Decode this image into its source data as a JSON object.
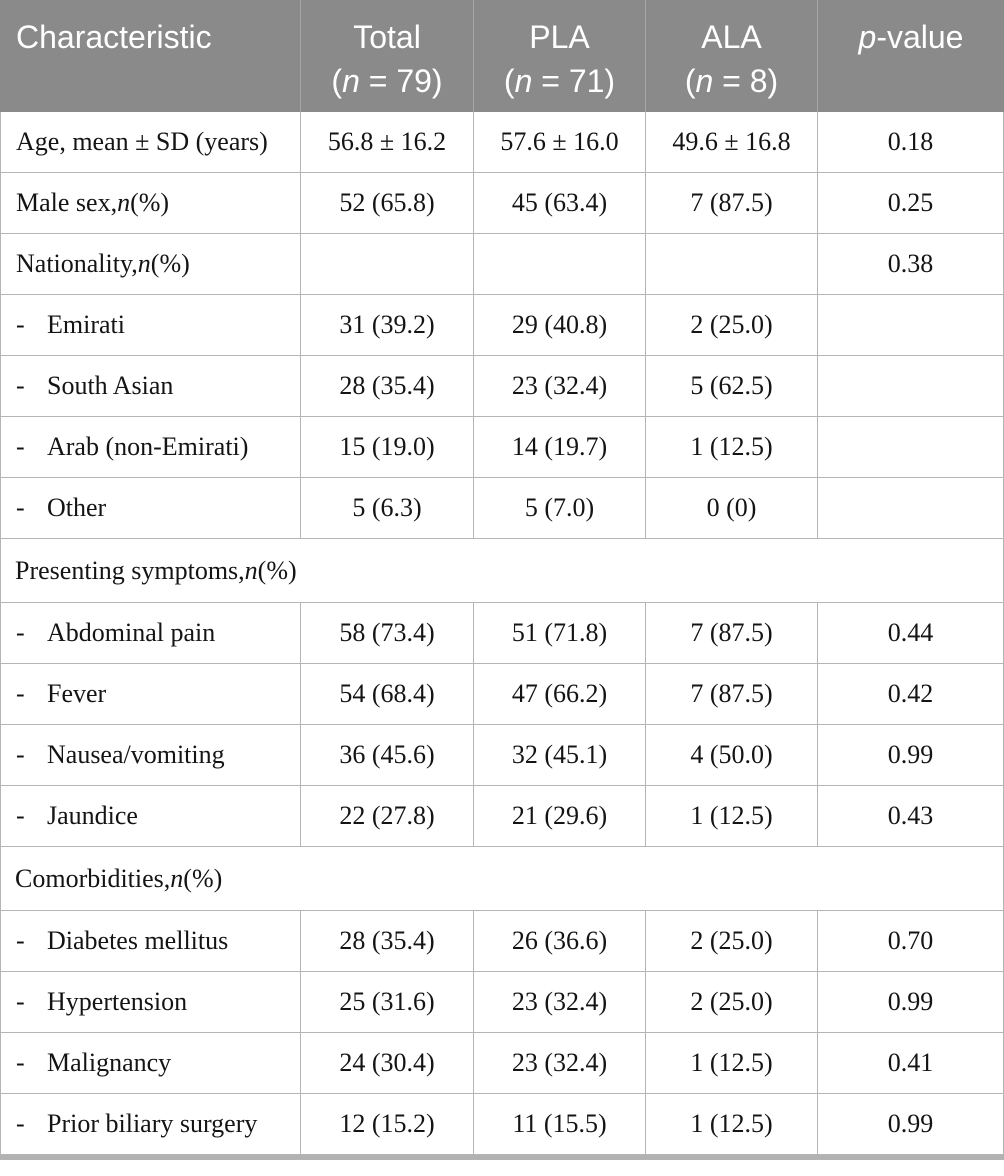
{
  "colors": {
    "header_bg": "#8a8a8a",
    "header_text": "#ffffff",
    "header_divider": "#a6a6a6",
    "row_border": "#b5b5b5",
    "body_text": "#141414",
    "bottom_bar": "#b2b2b2"
  },
  "table": {
    "indent_marker": "-",
    "header": {
      "columns": [
        {
          "lines": [
            [
              {
                "t": "Characteristic",
                "i": false
              }
            ]
          ]
        },
        {
          "lines": [
            [
              {
                "t": "Total",
                "i": false
              }
            ],
            [
              {
                "t": "(",
                "i": false
              },
              {
                "t": "n",
                "i": true
              },
              {
                "t": " = 79)",
                "i": false
              }
            ]
          ]
        },
        {
          "lines": [
            [
              {
                "t": "PLA",
                "i": false
              }
            ],
            [
              {
                "t": "(",
                "i": false
              },
              {
                "t": "n",
                "i": true
              },
              {
                "t": " = 71)",
                "i": false
              }
            ]
          ]
        },
        {
          "lines": [
            [
              {
                "t": "ALA",
                "i": false
              }
            ],
            [
              {
                "t": "(",
                "i": false
              },
              {
                "t": "n",
                "i": true
              },
              {
                "t": " = 8)",
                "i": false
              }
            ]
          ]
        },
        {
          "lines": [
            [
              {
                "t": "p",
                "i": true
              },
              {
                "t": "-value",
                "i": false
              }
            ]
          ]
        }
      ]
    },
    "rows": [
      {
        "type": "data",
        "indent": false,
        "label": [
          {
            "t": "Age, mean ± SD (years)",
            "i": false
          }
        ],
        "cells": [
          "56.8 ± 16.2",
          "57.6 ± 16.0",
          "49.6 ± 16.8",
          "0.18"
        ]
      },
      {
        "type": "data",
        "indent": false,
        "label": [
          {
            "t": "Male sex, ",
            "i": false
          },
          {
            "t": "n",
            "i": true
          },
          {
            "t": " (%)",
            "i": false
          }
        ],
        "cells": [
          "52 (65.8)",
          "45 (63.4)",
          "7 (87.5)",
          "0.25"
        ]
      },
      {
        "type": "data",
        "indent": false,
        "label": [
          {
            "t": "Nationality, ",
            "i": false
          },
          {
            "t": "n",
            "i": true
          },
          {
            "t": " (%)",
            "i": false
          }
        ],
        "cells": [
          "",
          "",
          "",
          "0.38"
        ]
      },
      {
        "type": "data",
        "indent": true,
        "label": [
          {
            "t": "Emirati",
            "i": false
          }
        ],
        "cells": [
          "31 (39.2)",
          "29 (40.8)",
          "2 (25.0)",
          ""
        ]
      },
      {
        "type": "data",
        "indent": true,
        "label": [
          {
            "t": "South Asian",
            "i": false
          }
        ],
        "cells": [
          "28 (35.4)",
          "23 (32.4)",
          "5 (62.5)",
          ""
        ]
      },
      {
        "type": "data",
        "indent": true,
        "label": [
          {
            "t": "Arab (non-Emirati)",
            "i": false
          }
        ],
        "cells": [
          "15 (19.0)",
          "14 (19.7)",
          "1 (12.5)",
          ""
        ]
      },
      {
        "type": "data",
        "indent": true,
        "label": [
          {
            "t": "Other",
            "i": false
          }
        ],
        "cells": [
          "5 (6.3)",
          "5 (7.0)",
          "0 (0)",
          ""
        ]
      },
      {
        "type": "section",
        "label": [
          {
            "t": "Presenting symptoms, ",
            "i": false
          },
          {
            "t": "n",
            "i": true
          },
          {
            "t": " (%)",
            "i": false
          }
        ]
      },
      {
        "type": "data",
        "indent": true,
        "label": [
          {
            "t": "Abdominal pain",
            "i": false
          }
        ],
        "cells": [
          "58 (73.4)",
          "51 (71.8)",
          "7 (87.5)",
          "0.44"
        ]
      },
      {
        "type": "data",
        "indent": true,
        "label": [
          {
            "t": "Fever",
            "i": false
          }
        ],
        "cells": [
          "54 (68.4)",
          "47 (66.2)",
          "7 (87.5)",
          "0.42"
        ]
      },
      {
        "type": "data",
        "indent": true,
        "label": [
          {
            "t": "Nausea/vomiting",
            "i": false
          }
        ],
        "cells": [
          "36 (45.6)",
          "32 (45.1)",
          "4 (50.0)",
          "0.99"
        ]
      },
      {
        "type": "data",
        "indent": true,
        "label": [
          {
            "t": "Jaundice",
            "i": false
          }
        ],
        "cells": [
          "22 (27.8)",
          "21 (29.6)",
          "1 (12.5)",
          "0.43"
        ]
      },
      {
        "type": "section",
        "label": [
          {
            "t": "Comorbidities, ",
            "i": false
          },
          {
            "t": "n",
            "i": true
          },
          {
            "t": " (%)",
            "i": false
          }
        ]
      },
      {
        "type": "data",
        "indent": true,
        "label": [
          {
            "t": "Diabetes mellitus",
            "i": false
          }
        ],
        "cells": [
          "28 (35.4)",
          "26 (36.6)",
          "2 (25.0)",
          "0.70"
        ]
      },
      {
        "type": "data",
        "indent": true,
        "label": [
          {
            "t": "Hypertension",
            "i": false
          }
        ],
        "cells": [
          "25 (31.6)",
          "23 (32.4)",
          "2 (25.0)",
          "0.99"
        ]
      },
      {
        "type": "data",
        "indent": true,
        "label": [
          {
            "t": "Malignancy",
            "i": false
          }
        ],
        "cells": [
          "24 (30.4)",
          "23 (32.4)",
          "1 (12.5)",
          "0.41"
        ]
      },
      {
        "type": "data",
        "indent": true,
        "label": [
          {
            "t": "Prior biliary surgery",
            "i": false
          }
        ],
        "cells": [
          "12 (15.2)",
          "11 (15.5)",
          "1 (12.5)",
          "0.99"
        ]
      }
    ]
  },
  "chart_data": {
    "type": "table",
    "title": "Characteristics of patients: Total vs PLA vs ALA",
    "columns": [
      "Characteristic",
      "Total (n = 79)",
      "PLA (n = 71)",
      "ALA (n = 8)",
      "p-value"
    ],
    "rows": [
      [
        "Age, mean ± SD (years)",
        "56.8 ± 16.2",
        "57.6 ± 16.0",
        "49.6 ± 16.8",
        "0.18"
      ],
      [
        "Male sex, n (%)",
        "52 (65.8)",
        "45 (63.4)",
        "7 (87.5)",
        "0.25"
      ],
      [
        "Nationality, n (%)",
        "",
        "",
        "",
        "0.38"
      ],
      [
        "- Emirati",
        "31 (39.2)",
        "29 (40.8)",
        "2 (25.0)",
        ""
      ],
      [
        "- South Asian",
        "28 (35.4)",
        "23 (32.4)",
        "5 (62.5)",
        ""
      ],
      [
        "- Arab (non-Emirati)",
        "15 (19.0)",
        "14 (19.7)",
        "1 (12.5)",
        ""
      ],
      [
        "- Other",
        "5 (6.3)",
        "5 (7.0)",
        "0 (0)",
        ""
      ],
      [
        "Presenting symptoms, n (%)",
        "",
        "",
        "",
        ""
      ],
      [
        "- Abdominal pain",
        "58 (73.4)",
        "51 (71.8)",
        "7 (87.5)",
        "0.44"
      ],
      [
        "- Fever",
        "54 (68.4)",
        "47 (66.2)",
        "7 (87.5)",
        "0.42"
      ],
      [
        "- Nausea/vomiting",
        "36 (45.6)",
        "32 (45.1)",
        "4 (50.0)",
        "0.99"
      ],
      [
        "- Jaundice",
        "22 (27.8)",
        "21 (29.6)",
        "1 (12.5)",
        "0.43"
      ],
      [
        "Comorbidities, n (%)",
        "",
        "",
        "",
        ""
      ],
      [
        "- Diabetes mellitus",
        "28 (35.4)",
        "26 (36.6)",
        "2 (25.0)",
        "0.70"
      ],
      [
        "- Hypertension",
        "25 (31.6)",
        "23 (32.4)",
        "2 (25.0)",
        "0.99"
      ],
      [
        "- Malignancy",
        "24 (30.4)",
        "23 (32.4)",
        "1 (12.5)",
        "0.41"
      ],
      [
        "- Prior biliary surgery",
        "12 (15.2)",
        "11 (15.5)",
        "1 (12.5)",
        "0.99"
      ]
    ]
  }
}
